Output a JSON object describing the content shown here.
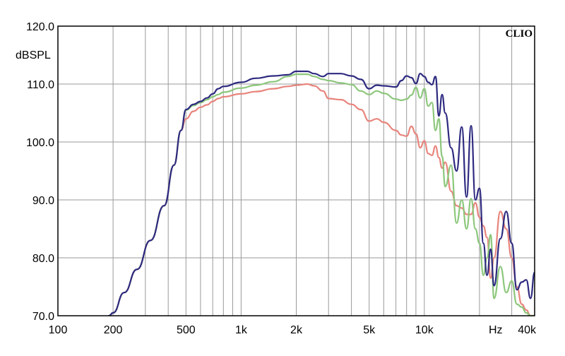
{
  "chart_data": {
    "type": "line",
    "brand": "CLIO",
    "ylabel": "dBSPL",
    "xunit": "Hz",
    "x_scale": "log",
    "xlim": [
      100,
      40000
    ],
    "ylim": [
      70,
      120
    ],
    "grid": true,
    "y_ticks": [
      {
        "value": 120,
        "label": "120.0"
      },
      {
        "value": 110,
        "label": "110.0"
      },
      {
        "value": 100,
        "label": "100.0"
      },
      {
        "value": 90,
        "label": "90.0"
      },
      {
        "value": 80,
        "label": "80.0"
      },
      {
        "value": 70,
        "label": "70.0"
      }
    ],
    "x_ticks": [
      {
        "value": 100,
        "label": "100"
      },
      {
        "value": 200,
        "label": "200"
      },
      {
        "value": 500,
        "label": "500"
      },
      {
        "value": 1000,
        "label": "1k"
      },
      {
        "value": 2000,
        "label": "2k"
      },
      {
        "value": 5000,
        "label": "5k"
      },
      {
        "value": 10000,
        "label": "10k"
      },
      {
        "value": 40000,
        "label": "40k"
      }
    ],
    "series": [
      {
        "color": "#e8847c",
        "x": [
          190,
          200,
          230,
          270,
          320,
          380,
          430,
          470,
          500,
          550,
          600,
          650,
          700,
          750,
          800,
          1000,
          1200,
          1500,
          1800,
          2000,
          2300,
          2500,
          2800,
          3000,
          3500,
          4000,
          4500,
          5000,
          5500,
          6000,
          7000,
          7500,
          8000,
          8500,
          9000,
          9500,
          10000,
          10500,
          11000,
          11500,
          12000,
          12500,
          13000,
          14000,
          15000,
          16000,
          17000,
          18000,
          19000,
          20000,
          21000,
          22000,
          23000,
          24000,
          26000,
          28000,
          30000,
          32000,
          34000,
          36000,
          38000,
          40000
        ],
        "y": [
          70,
          70.5,
          74,
          78,
          83,
          89,
          96,
          102,
          104,
          105.3,
          106,
          106.4,
          107,
          107.5,
          107.8,
          108.3,
          108.7,
          109.2,
          109.6,
          109.8,
          110,
          109.7,
          108.8,
          107.5,
          107.3,
          106.5,
          105.6,
          103.6,
          104,
          103.4,
          102,
          101.2,
          101,
          102.7,
          101.4,
          99,
          100.2,
          98,
          97.7,
          99.3,
          97.3,
          95.5,
          96.5,
          91.5,
          89,
          88.6,
          87.5,
          87.5,
          89.5,
          87,
          85.5,
          83.5,
          76.5,
          80,
          88,
          85,
          80,
          75,
          72,
          71,
          70,
          70
        ]
      },
      {
        "color": "#8cc77b",
        "x": [
          190,
          200,
          230,
          270,
          320,
          380,
          430,
          470,
          500,
          550,
          600,
          650,
          700,
          750,
          800,
          1000,
          1200,
          1500,
          1800,
          2000,
          2300,
          2500,
          2800,
          3000,
          3500,
          4000,
          4500,
          5000,
          5500,
          6000,
          7000,
          7500,
          8000,
          8500,
          9000,
          9500,
          10000,
          10500,
          11000,
          11500,
          12000,
          12500,
          13000,
          14000,
          15000,
          16000,
          17000,
          18000,
          19000,
          20000,
          21000,
          22000,
          23000,
          24000,
          26000,
          28000,
          30000,
          32000,
          34000,
          36000,
          38000,
          40000
        ],
        "y": [
          70,
          70.5,
          74,
          78,
          83,
          89,
          96,
          102,
          105.5,
          106.3,
          106.8,
          107.3,
          107.8,
          108.2,
          108.6,
          109.3,
          109.8,
          110.4,
          111.3,
          111.7,
          111.7,
          111.3,
          110.8,
          110.6,
          110.2,
          109.9,
          108.8,
          108.2,
          108.8,
          108.4,
          107.4,
          107.2,
          107.4,
          108.1,
          109.4,
          107.6,
          109.2,
          106.2,
          106.8,
          102,
          104,
          97.5,
          92.3,
          96,
          86,
          90,
          85,
          90.2,
          85,
          82.5,
          77,
          80,
          84,
          73,
          78.5,
          74,
          76,
          72,
          71.5,
          70.5,
          70,
          70
        ]
      },
      {
        "color": "#2e2a80",
        "x": [
          190,
          200,
          230,
          270,
          320,
          380,
          430,
          470,
          500,
          550,
          600,
          650,
          700,
          750,
          800,
          1000,
          1200,
          1500,
          1800,
          2000,
          2300,
          2500,
          2800,
          3000,
          3500,
          4000,
          4500,
          5000,
          5500,
          6000,
          7000,
          7500,
          8000,
          8500,
          9000,
          9500,
          10000,
          10500,
          11000,
          11500,
          12000,
          12500,
          13000,
          14000,
          15000,
          16000,
          17000,
          18000,
          19000,
          20000,
          21000,
          22000,
          23000,
          24000,
          26000,
          28000,
          30000,
          32000,
          34000,
          36000,
          38000,
          40000
        ],
        "y": [
          70,
          70.5,
          74,
          78,
          83,
          89,
          96,
          102,
          105.6,
          106.5,
          107,
          107.6,
          108.3,
          109.2,
          109.6,
          110.3,
          111,
          111.4,
          111.6,
          112.2,
          112.2,
          111.8,
          111.3,
          111.8,
          111.8,
          111.4,
          110.8,
          109.2,
          109.8,
          109.7,
          109.5,
          110.6,
          111.4,
          111.1,
          110.1,
          111.8,
          111.3,
          110.3,
          109.9,
          111.3,
          104.5,
          108.2,
          105,
          99,
          95,
          102.6,
          90.5,
          102.8,
          90,
          92,
          82.5,
          77,
          81.5,
          75.2,
          83.3,
          88,
          82.5,
          74.5,
          75.8,
          76.2,
          73,
          77.5
        ]
      }
    ]
  }
}
